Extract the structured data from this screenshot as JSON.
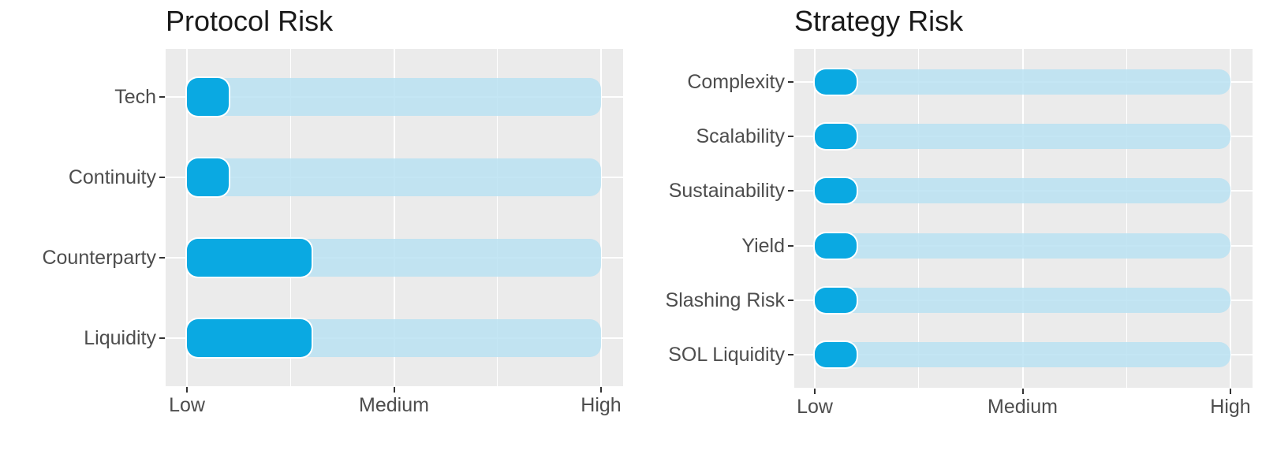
{
  "colors": {
    "fill": "#0AA9E2",
    "track": "#C0E2F0",
    "panel": "#EBEBEB",
    "grid": "#FFFFFF",
    "text": "#4D4D4D",
    "title": "#1A1A1A",
    "tick_mark": "#333333"
  },
  "chart_data": [
    {
      "type": "bar",
      "title": "Protocol Risk",
      "orientation": "horizontal",
      "categories": [
        "Tech",
        "Continuity",
        "Counterparty",
        "Liquidity"
      ],
      "values": [
        1.2,
        1.2,
        1.6,
        1.6
      ],
      "track_range": [
        1,
        3
      ],
      "x_ticks": [
        {
          "value": 1,
          "label": "Low"
        },
        {
          "value": 2,
          "label": "Medium"
        },
        {
          "value": 3,
          "label": "High"
        }
      ],
      "xlabel": "",
      "ylabel": "",
      "xlim": [
        0.9,
        3.1
      ],
      "legend": "none",
      "grid": "white-major-and-minor-on-gray"
    },
    {
      "type": "bar",
      "title": "Strategy Risk",
      "orientation": "horizontal",
      "categories": [
        "Complexity",
        "Scalability",
        "Sustainability",
        "Yield",
        "Slashing Risk",
        "SOL Liquidity"
      ],
      "values": [
        1.2,
        1.2,
        1.2,
        1.2,
        1.2,
        1.2
      ],
      "track_range": [
        1,
        3
      ],
      "x_ticks": [
        {
          "value": 1,
          "label": "Low"
        },
        {
          "value": 2,
          "label": "Medium"
        },
        {
          "value": 3,
          "label": "High"
        }
      ],
      "xlabel": "",
      "ylabel": "",
      "xlim": [
        0.9,
        3.1
      ],
      "legend": "none",
      "grid": "white-major-and-minor-on-gray"
    }
  ]
}
